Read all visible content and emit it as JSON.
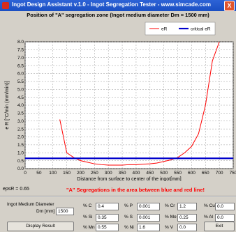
{
  "window": {
    "title": "Ingot Design Assistant v.1.0 - Ingot Segregation Tester - www.simcade.com",
    "close_label": "X"
  },
  "chart_data": {
    "type": "line",
    "title": "Position of \"A\" segregation zone (Ingot medium diameter Dm = 1500 mm)",
    "xlabel": "Distance from surface to center of the ingot[mm]",
    "ylabel": "e R [°C/min (mm/min)]",
    "xlim": [
      0,
      750
    ],
    "ylim": [
      0,
      8.0
    ],
    "xticks": [
      0,
      50,
      100,
      150,
      200,
      250,
      300,
      350,
      400,
      450,
      500,
      550,
      600,
      650,
      700,
      750
    ],
    "yticks": [
      0.0,
      0.5,
      1.0,
      1.5,
      2.0,
      2.5,
      3.0,
      3.5,
      4.0,
      4.5,
      5.0,
      5.5,
      6.0,
      6.5,
      7.0,
      7.5,
      8.0
    ],
    "grid": true,
    "legend_position": "top-right",
    "series": [
      {
        "name": "eR",
        "color": "#ff0000",
        "x": [
          125,
          150,
          175,
          200,
          225,
          250,
          275,
          300,
          325,
          350,
          375,
          400,
          425,
          450,
          475,
          500,
          525,
          550,
          575,
          600,
          625,
          650,
          675,
          700
        ],
        "y": [
          3.1,
          1.0,
          0.7,
          0.5,
          0.4,
          0.3,
          0.25,
          0.22,
          0.22,
          0.22,
          0.25,
          0.25,
          0.28,
          0.3,
          0.35,
          0.45,
          0.55,
          0.7,
          1.0,
          1.4,
          2.2,
          4.0,
          6.8,
          8.0
        ]
      },
      {
        "name": "critical eR",
        "color": "#0000cc",
        "x": [
          0,
          750
        ],
        "y": [
          0.65,
          0.65
        ]
      }
    ]
  },
  "status": {
    "epsR_text": "epsR = 0.65",
    "warning": "\"A\" Segregations in the area between blue and red line!"
  },
  "form": {
    "diameter_label_1": "Ingot Medium Diameter",
    "diameter_label_2": "Dm [mm]",
    "diameter_value": "1500",
    "display_button": "Display Result",
    "exit_button": "Exit",
    "elements": [
      {
        "label": "% C",
        "value": "0.4"
      },
      {
        "label": "% P",
        "value": "0.001"
      },
      {
        "label": "% Cr",
        "value": "1.2"
      },
      {
        "label": "% Cu",
        "value": "0.0"
      },
      {
        "label": "% Si",
        "value": "0.35"
      },
      {
        "label": "% S",
        "value": "0.001"
      },
      {
        "label": "% Mo",
        "value": "0.25"
      },
      {
        "label": "% Al",
        "value": "0.0"
      },
      {
        "label": "% Mn",
        "value": "0.55"
      },
      {
        "label": "% Ni",
        "value": "1.6"
      },
      {
        "label": "% V",
        "value": "0.0"
      }
    ]
  }
}
